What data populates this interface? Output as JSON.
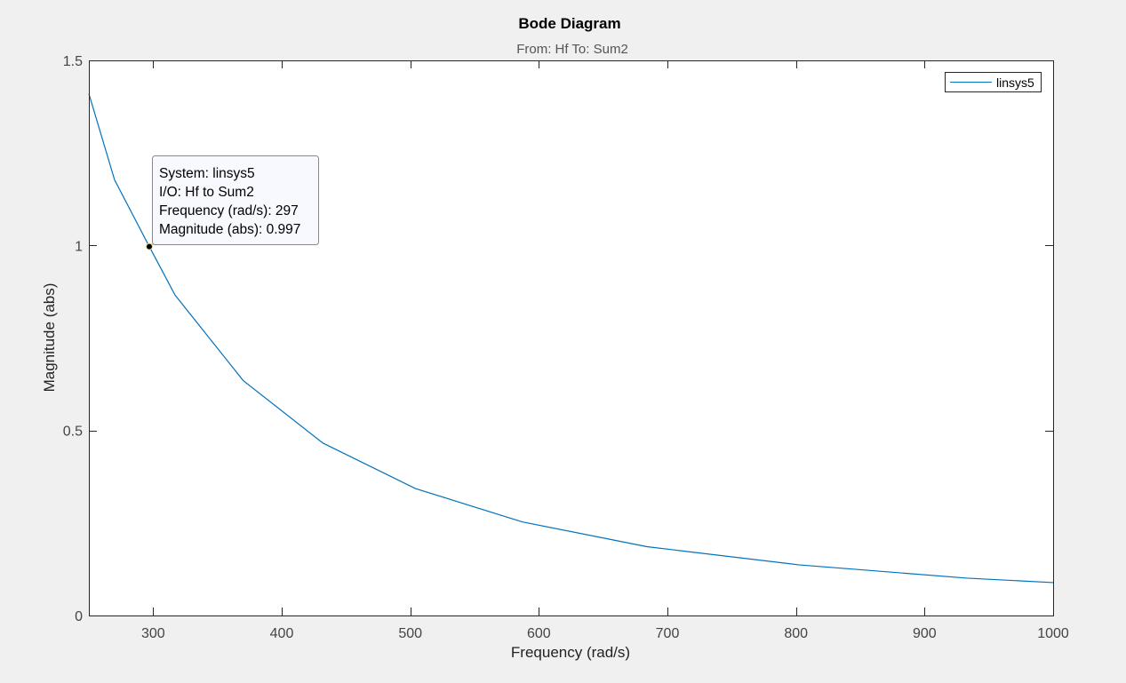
{
  "chart_data": {
    "type": "line",
    "title": "Bode Diagram",
    "subtitle": "From: Hf  To: Sum2",
    "xlabel": "Frequency  (rad/s)",
    "ylabel": "Magnitude (abs)",
    "xlim": [
      250,
      1000
    ],
    "ylim": [
      0,
      1.5
    ],
    "xticks": [
      300,
      400,
      500,
      600,
      700,
      800,
      900,
      1000
    ],
    "xtick_labels": [
      "300",
      "400",
      "500",
      "600",
      "700",
      "800",
      "900",
      "1000"
    ],
    "yticks": [
      0,
      0.5,
      1,
      1.5
    ],
    "ytick_labels": [
      "0",
      "0.5",
      "1",
      "1.5"
    ],
    "grid": false,
    "legend": {
      "location": "top-right",
      "entries": [
        "linsys5"
      ]
    },
    "series": [
      {
        "name": "linsys5",
        "color": "#0072bd",
        "x": [
          250,
          270,
          297,
          317,
          370,
          432,
          504,
          587,
          684,
          802,
          933,
          1000
        ],
        "y": [
          1.41,
          1.177,
          0.997,
          0.866,
          0.635,
          0.466,
          0.343,
          0.253,
          0.186,
          0.137,
          0.101,
          0.089
        ]
      }
    ],
    "datatip": {
      "x": 297,
      "y": 0.997,
      "lines": [
        "System: linsys5",
        "I/O: Hf to Sum2",
        "Frequency (rad/s): 297",
        "Magnitude (abs): 0.997"
      ]
    }
  },
  "colors": {
    "figure_background": "#f0f0f0",
    "axes_background": "#ffffff",
    "axis_color": "#262626",
    "line_color": "#0072bd"
  }
}
